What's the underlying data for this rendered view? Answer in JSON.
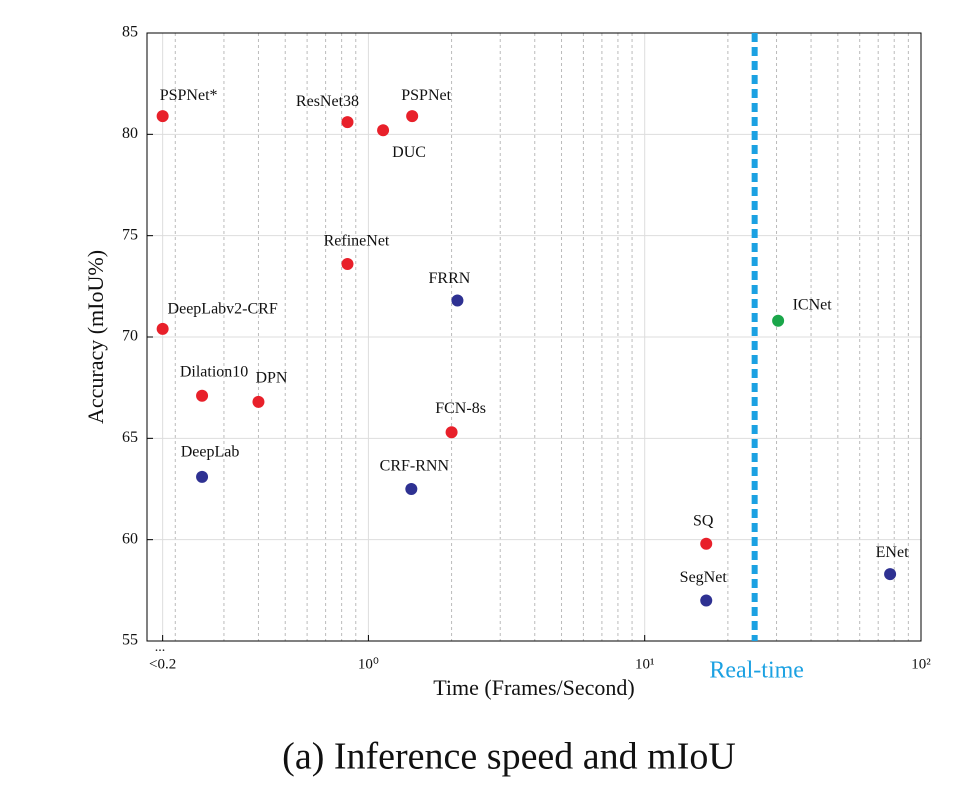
{
  "chart_data": {
    "type": "scatter",
    "x_label": "Time (Frames/Second)",
    "y_label": "Accuracy (mIoU%)",
    "caption": "(a) Inference speed and mIoU",
    "x_log_scale": true,
    "xlim": [
      0.158,
      100
    ],
    "ylim": [
      55,
      85
    ],
    "xticks": [
      {
        "value": 0.18,
        "label": "<0.2"
      },
      {
        "value": 1,
        "label": "10⁰"
      },
      {
        "value": 10,
        "label": "10¹"
      },
      {
        "value": 100,
        "label": "10²"
      }
    ],
    "x_minor_ticks": [
      0.2,
      0.3,
      0.4,
      0.5,
      0.6,
      0.7,
      0.8,
      0.9,
      2,
      3,
      4,
      5,
      6,
      7,
      8,
      9,
      20,
      30,
      40,
      50,
      60,
      70,
      80,
      90
    ],
    "yticks": [
      55,
      60,
      65,
      70,
      75,
      80,
      85
    ],
    "grid": true,
    "axis_break_mark": "...",
    "points": [
      {
        "label": "PSPNet*",
        "x": 0.18,
        "y": 80.9,
        "color": "#e8202a"
      },
      {
        "label": "ResNet38",
        "x": 0.84,
        "y": 80.6,
        "color": "#e8202a"
      },
      {
        "label": "DUC",
        "x": 1.13,
        "y": 80.2,
        "color": "#e8202a"
      },
      {
        "label": "PSPNet",
        "x": 1.44,
        "y": 80.9,
        "color": "#e8202a"
      },
      {
        "label": "RefineNet",
        "x": 0.84,
        "y": 73.6,
        "color": "#e8202a"
      },
      {
        "label": "FRRN",
        "x": 2.1,
        "y": 71.8,
        "color": "#2e3192"
      },
      {
        "label": "ICNet",
        "x": 30.4,
        "y": 70.8,
        "color": "#1aa64a"
      },
      {
        "label": "DeepLabv2-CRF",
        "x": 0.18,
        "y": 70.4,
        "color": "#e8202a"
      },
      {
        "label": "Dilation10",
        "x": 0.25,
        "y": 67.1,
        "color": "#e8202a"
      },
      {
        "label": "DPN",
        "x": 0.4,
        "y": 66.8,
        "color": "#e8202a"
      },
      {
        "label": "FCN-8s",
        "x": 2.0,
        "y": 65.3,
        "color": "#e8202a"
      },
      {
        "label": "DeepLab",
        "x": 0.25,
        "y": 63.1,
        "color": "#2e3192"
      },
      {
        "label": "CRF-RNN",
        "x": 1.43,
        "y": 62.5,
        "color": "#2e3192"
      },
      {
        "label": "SQ",
        "x": 16.7,
        "y": 59.8,
        "color": "#e8202a"
      },
      {
        "label": "SegNet",
        "x": 16.7,
        "y": 57.0,
        "color": "#2e3192"
      },
      {
        "label": "ENet",
        "x": 77.3,
        "y": 58.3,
        "color": "#2e3192"
      }
    ],
    "threshold": {
      "label": "Real-time",
      "x": 25,
      "color": "#1ba1e2"
    }
  }
}
